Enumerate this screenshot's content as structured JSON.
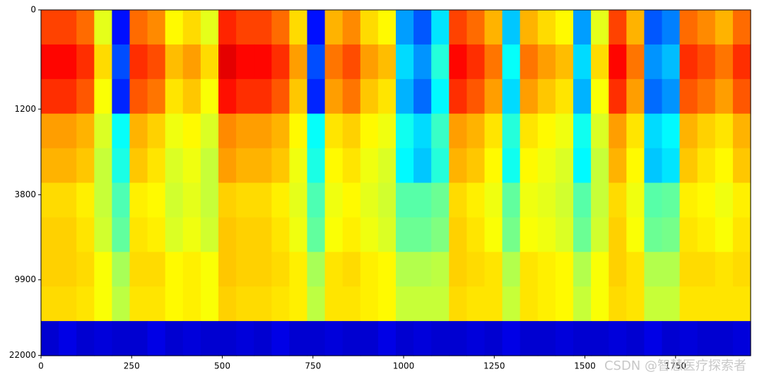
{
  "chart_data": {
    "type": "heatmap",
    "colormap": "jet",
    "yscale": "mel",
    "yinverted": true,
    "xlim": [
      0,
      1957
    ],
    "xticks": [
      0,
      250,
      500,
      750,
      1000,
      1250,
      1500,
      1750
    ],
    "ylim": [
      0,
      22050
    ],
    "yticks": [
      0,
      1200,
      3800,
      9900,
      22000
    ],
    "zlim": [
      0,
      100
    ],
    "watermark": "CSDN @智慧医疗探索者",
    "z": [
      [
        81,
        81,
        77,
        60,
        14,
        77,
        74,
        63,
        66,
        60,
        84,
        81,
        81,
        77,
        66,
        14,
        70,
        74,
        66,
        63,
        28,
        21,
        35,
        81,
        77,
        70,
        32,
        70,
        66,
        63,
        28,
        60,
        81,
        70,
        21,
        25,
        77,
        74,
        70,
        77
      ],
      [
        87,
        87,
        83,
        66,
        20,
        83,
        80,
        69,
        72,
        66,
        90,
        87,
        87,
        83,
        72,
        20,
        76,
        80,
        72,
        69,
        34,
        27,
        41,
        87,
        83,
        76,
        38,
        76,
        72,
        69,
        34,
        66,
        87,
        76,
        27,
        31,
        83,
        80,
        76,
        83
      ],
      [
        83,
        83,
        79,
        62,
        16,
        79,
        76,
        65,
        68,
        62,
        86,
        83,
        83,
        79,
        68,
        16,
        72,
        76,
        68,
        65,
        30,
        23,
        37,
        83,
        79,
        72,
        34,
        72,
        68,
        65,
        30,
        62,
        83,
        72,
        23,
        27,
        79,
        76,
        72,
        79
      ],
      [
        72,
        72,
        70,
        59,
        38,
        70,
        67,
        61,
        63,
        59,
        74,
        72,
        72,
        70,
        63,
        38,
        65,
        67,
        63,
        61,
        39,
        34,
        43,
        72,
        70,
        65,
        41,
        65,
        63,
        61,
        39,
        59,
        72,
        65,
        34,
        37,
        70,
        67,
        65,
        70
      ],
      [
        70,
        70,
        68,
        57,
        40,
        68,
        65,
        59,
        61,
        57,
        72,
        70,
        70,
        68,
        61,
        40,
        63,
        65,
        61,
        59,
        37,
        32,
        41,
        70,
        68,
        63,
        39,
        63,
        61,
        59,
        37,
        57,
        70,
        63,
        32,
        35,
        68,
        65,
        63,
        68
      ],
      [
        66,
        66,
        64,
        57,
        45,
        64,
        63,
        58,
        60,
        57,
        67,
        66,
        66,
        64,
        60,
        45,
        61,
        63,
        60,
        58,
        46,
        46,
        48,
        66,
        64,
        61,
        47,
        61,
        60,
        58,
        46,
        57,
        66,
        61,
        46,
        47,
        64,
        63,
        61,
        64
      ],
      [
        67,
        67,
        65,
        58,
        47,
        65,
        64,
        59,
        61,
        58,
        68,
        67,
        67,
        65,
        61,
        47,
        62,
        64,
        61,
        59,
        48,
        48,
        50,
        67,
        65,
        62,
        49,
        62,
        61,
        59,
        48,
        58,
        67,
        62,
        48,
        49,
        65,
        64,
        62,
        65
      ],
      [
        67,
        67,
        66,
        62,
        54,
        66,
        66,
        63,
        64,
        62,
        68,
        67,
        67,
        66,
        64,
        54,
        65,
        66,
        64,
        63,
        55,
        55,
        56,
        67,
        66,
        65,
        55,
        65,
        64,
        63,
        55,
        62,
        67,
        65,
        55,
        55,
        66,
        66,
        65,
        66
      ],
      [
        66,
        66,
        65,
        62,
        56,
        65,
        65,
        63,
        64,
        62,
        67,
        66,
        66,
        65,
        64,
        56,
        65,
        65,
        64,
        63,
        57,
        57,
        57,
        66,
        65,
        65,
        57,
        65,
        64,
        63,
        57,
        62,
        66,
        65,
        57,
        57,
        65,
        65,
        65,
        65
      ],
      [
        8,
        10,
        8,
        9,
        8,
        8,
        10,
        8,
        9,
        8,
        8,
        9,
        8,
        10,
        8,
        8,
        9,
        8,
        8,
        10,
        8,
        9,
        8,
        8,
        9,
        8,
        10,
        8,
        8,
        9,
        8,
        8,
        9,
        8,
        10,
        8,
        9,
        8,
        8,
        9
      ]
    ]
  }
}
